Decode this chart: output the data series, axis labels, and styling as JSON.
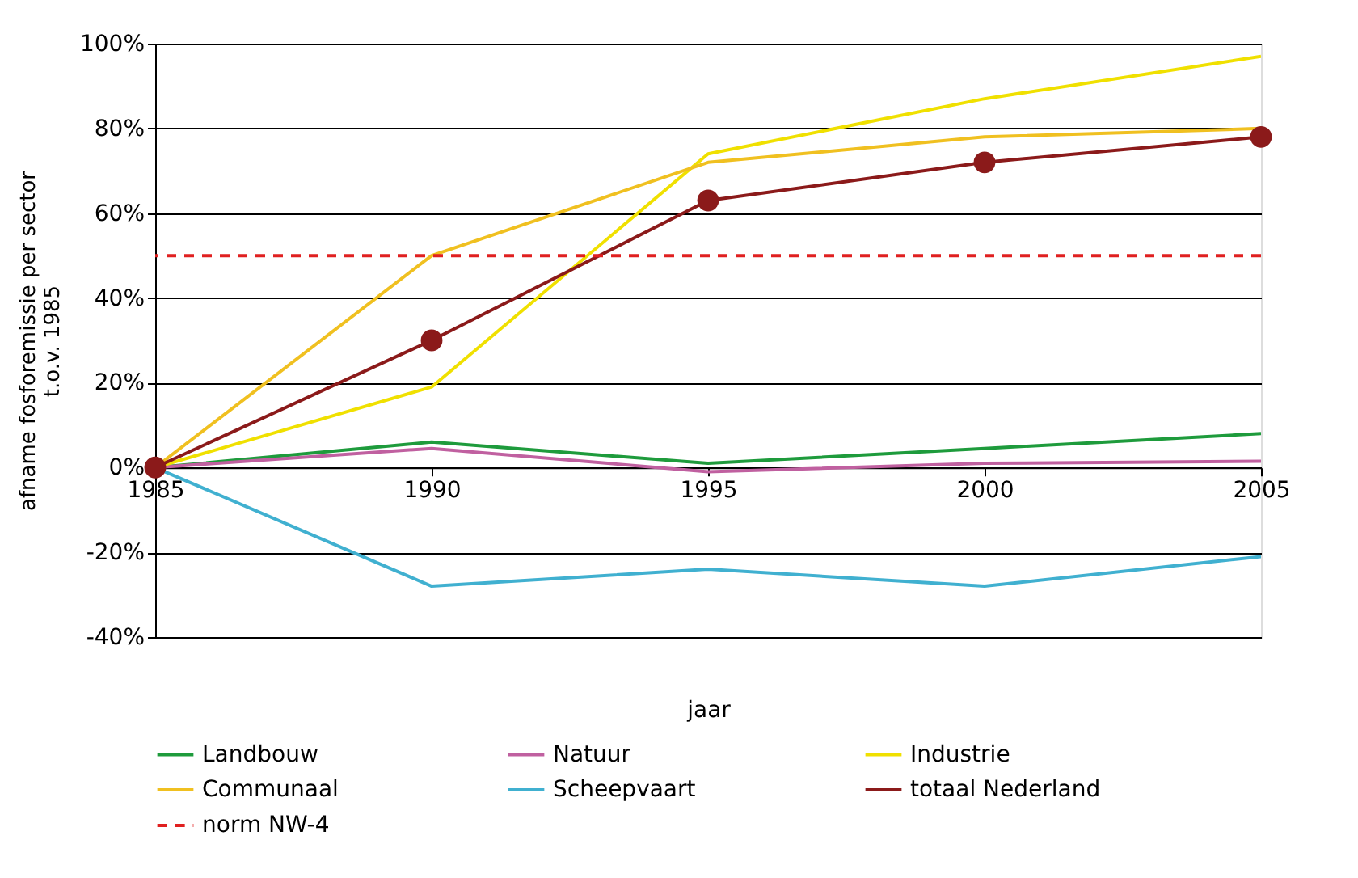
{
  "chart_data": {
    "type": "line",
    "xlabel": "jaar",
    "ylabel": "afname fosforemissie per sector\nt.o.v. 1985",
    "x": [
      1985,
      1990,
      1995,
      2000,
      2005
    ],
    "series": [
      {
        "name": "Landbouw",
        "color": "#1e9b3c",
        "values": [
          0,
          6,
          1,
          4.5,
          8
        ]
      },
      {
        "name": "Natuur",
        "color": "#c060a0",
        "values": [
          0,
          4.5,
          -1,
          1,
          1.5
        ]
      },
      {
        "name": "Industrie",
        "color": "#f0e000",
        "values": [
          0,
          19,
          74,
          87,
          97
        ]
      },
      {
        "name": "Communaal",
        "color": "#f0c020",
        "values": [
          0,
          50,
          72,
          78,
          80
        ]
      },
      {
        "name": "Scheepvaart",
        "color": "#40b0d0",
        "values": [
          0,
          -28,
          -24,
          -28,
          -21
        ]
      },
      {
        "name": "totaal Nederland",
        "color": "#8b1a1a",
        "values": [
          0,
          30,
          63,
          72,
          78
        ],
        "marker": "circle"
      }
    ],
    "ref_lines": [
      {
        "axis": "y",
        "value": 50,
        "label": "norm NW-4",
        "color": "#e02020",
        "line_style": "dashed"
      }
    ],
    "xlim": [
      1985,
      2005
    ],
    "xticks": [
      1985,
      1990,
      1995,
      2000,
      2005
    ],
    "ylim": [
      -40,
      100
    ],
    "yticks": [
      {
        "value": -40,
        "label": "-40%"
      },
      {
        "value": -20,
        "label": "-20%"
      },
      {
        "value": 0,
        "label": "0%"
      },
      {
        "value": 20,
        "label": "20%"
      },
      {
        "value": 40,
        "label": "40%"
      },
      {
        "value": 60,
        "label": "60%"
      },
      {
        "value": 80,
        "label": "80%"
      },
      {
        "value": 100,
        "label": "100%"
      }
    ],
    "grid": "y",
    "legend": "bottom",
    "marker": "none",
    "line_style": "solid"
  }
}
